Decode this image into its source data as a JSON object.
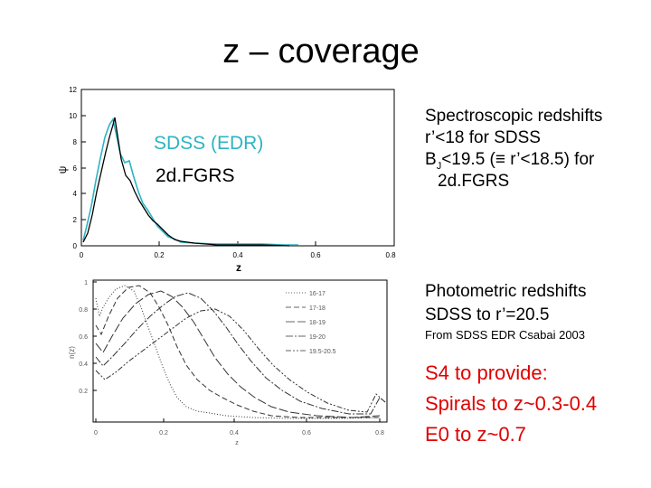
{
  "slide": {
    "title": "z – coverage",
    "top_plot": {
      "legend_sdss": "SDSS (EDR)",
      "legend_2df": "2d.FGRS",
      "ylabel": "ψ",
      "xlabel": "z",
      "xticks": [
        "0",
        "0.2",
        "0.4",
        "0.6",
        "0.8"
      ],
      "yticks": [
        "0",
        "2",
        "4",
        "6",
        "8",
        "10",
        "12"
      ]
    },
    "bottom_plot": {
      "ylabel": "n(z)",
      "xlabel": "z",
      "xticks": [
        "0",
        "0.2",
        "0.4",
        "0.6",
        "0.8"
      ],
      "yticks": [
        "1",
        "0.8",
        "0.6",
        "0.4",
        "0.2"
      ],
      "legend": [
        "16-17",
        "17-18",
        "18-19",
        "19-20",
        "19.5-20.5"
      ]
    },
    "spectro": {
      "line1": "Spectroscopic redshifts",
      "line2": "r’<18 for SDSS",
      "line3_pre": "B",
      "line3_sub": "J",
      "line3_post": "<19.5 (≡ r’<18.5) for",
      "line4": "2d.FGRS"
    },
    "photo": {
      "line1": "Photometric redshifts",
      "line2": "SDSS to r’=20.5",
      "source": "From SDSS EDR Csabai 2003"
    },
    "s4": {
      "line1": "S4 to provide:",
      "line2": "Spirals to z~0.3-0.4",
      "line3": "E0 to z~0.7"
    },
    "colors": {
      "sdss_curve": "#000000",
      "twodf_curve": "#2db4c3",
      "s4_text": "#e00000"
    }
  }
}
